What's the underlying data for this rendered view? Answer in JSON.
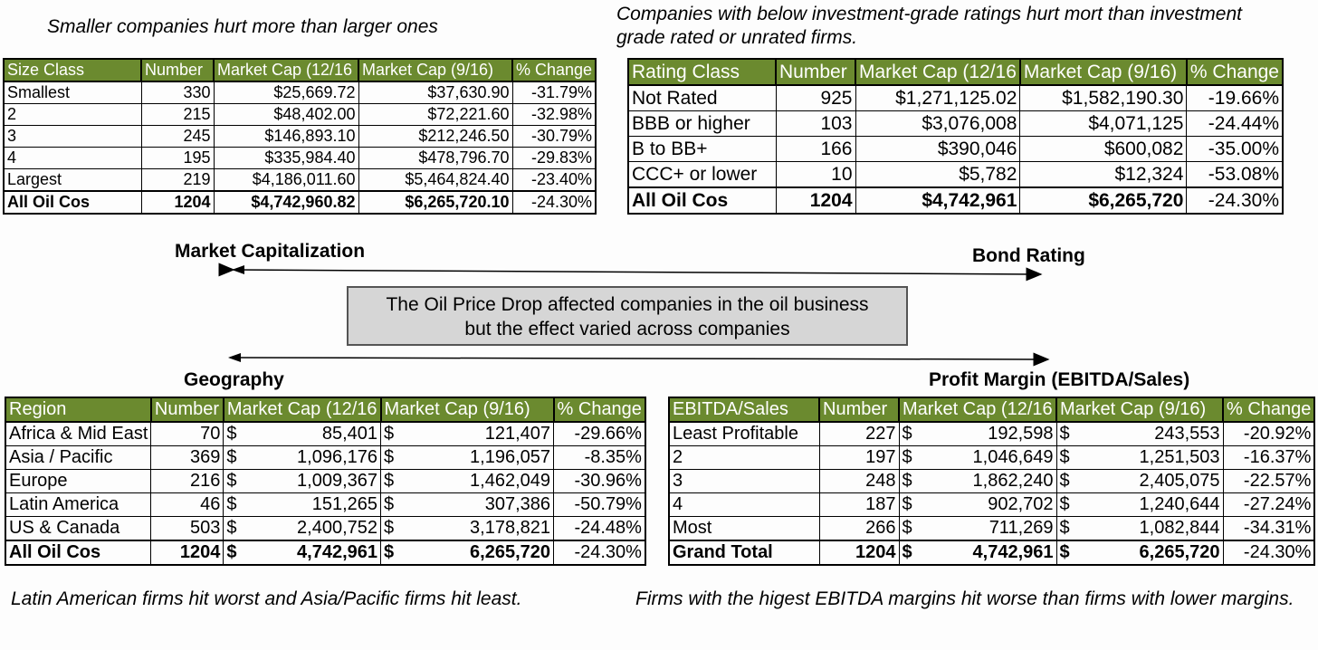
{
  "captions": {
    "size": "Smaller companies hurt more than larger ones",
    "rating": "Companies with below investment-grade ratings hurt mort than investment grade rated or unrated firms.",
    "geo": "Latin American firms hit worst and Asia/Pacific firms hit least.",
    "profit": "Firms with the higest EBITDA margins hit worse than firms with lower margins."
  },
  "labels": {
    "market_cap": "Market Capitalization",
    "bond_rating": "Bond Rating",
    "geography": "Geography",
    "profit_margin": "Profit Margin (EBITDA/Sales)"
  },
  "center_box": {
    "line1": "The Oil Price Drop affected companies in the oil business",
    "line2": "but the effect varied across companies"
  },
  "tables": {
    "size": {
      "headers": [
        "Size Class",
        "Number",
        "Market Cap (12/16",
        "Market Cap (9/16)",
        "% Change"
      ],
      "rows": [
        [
          "Smallest",
          "330",
          "$25,669.72",
          "$37,630.90",
          "-31.79%"
        ],
        [
          "2",
          "215",
          "$48,402.00",
          "$72,221.60",
          "-32.98%"
        ],
        [
          "3",
          "245",
          "$146,893.10",
          "$212,246.50",
          "-30.79%"
        ],
        [
          "4",
          "195",
          "$335,984.40",
          "$478,796.70",
          "-29.83%"
        ],
        [
          "Largest",
          "219",
          "$4,186,011.60",
          "$5,464,824.40",
          "-23.40%"
        ],
        [
          "All Oil Cos",
          "1204",
          "$4,742,960.82",
          "$6,265,720.10",
          "-24.30%"
        ]
      ]
    },
    "rating": {
      "headers": [
        "Rating Class",
        "Number",
        "Market Cap (12/16",
        "Market Cap (9/16)",
        "% Change"
      ],
      "rows": [
        [
          "Not Rated",
          "925",
          "$1,271,125.02",
          "$1,582,190.30",
          "-19.66%"
        ],
        [
          "BBB or higher",
          "103",
          "$3,076,008",
          "$4,071,125",
          "-24.44%"
        ],
        [
          "B to BB+",
          "166",
          "$390,046",
          "$600,082",
          "-35.00%"
        ],
        [
          "CCC+ or lower",
          "10",
          "$5,782",
          "$12,324",
          "-53.08%"
        ],
        [
          "All Oil Cos",
          "1204",
          "$4,742,961",
          "$6,265,720",
          "-24.30%"
        ]
      ]
    },
    "geo": {
      "headers": [
        "Region",
        "Number",
        "Market Cap (12/16",
        "Market Cap (9/16)",
        "% Change"
      ],
      "rows": [
        [
          "Africa & Mid East",
          "70",
          "$",
          "85,401",
          "$",
          "121,407",
          "-29.66%"
        ],
        [
          "Asia / Pacific",
          "369",
          "$",
          "1,096,176",
          "$",
          "1,196,057",
          "-8.35%"
        ],
        [
          "Europe",
          "216",
          "$",
          "1,009,367",
          "$",
          "1,462,049",
          "-30.96%"
        ],
        [
          "Latin America",
          "46",
          "$",
          "151,265",
          "$",
          "307,386",
          "-50.79%"
        ],
        [
          "US & Canada",
          "503",
          "$",
          "2,400,752",
          "$",
          "3,178,821",
          "-24.48%"
        ],
        [
          "All Oil Cos",
          "1204",
          "$",
          "4,742,961",
          "$",
          "6,265,720",
          "-24.30%"
        ]
      ]
    },
    "profit": {
      "headers": [
        "EBITDA/Sales",
        "Number",
        "Market Cap (12/16",
        "Market Cap (9/16)",
        "% Change"
      ],
      "rows": [
        [
          "Least Profitable",
          "227",
          "$",
          "192,598",
          "$",
          "243,553",
          "-20.92%"
        ],
        [
          "2",
          "197",
          "$",
          "1,046,649",
          "$",
          "1,251,503",
          "-16.37%"
        ],
        [
          "3",
          "248",
          "$",
          "1,862,240",
          "$",
          "2,405,075",
          "-22.57%"
        ],
        [
          "4",
          "187",
          "$",
          "902,702",
          "$",
          "1,240,644",
          "-27.24%"
        ],
        [
          "Most",
          "266",
          "$",
          "711,269",
          "$",
          "1,082,844",
          "-34.31%"
        ],
        [
          "Grand Total",
          "1204",
          "$",
          "4,742,961",
          "$",
          "6,265,720",
          "-24.30%"
        ]
      ]
    }
  }
}
